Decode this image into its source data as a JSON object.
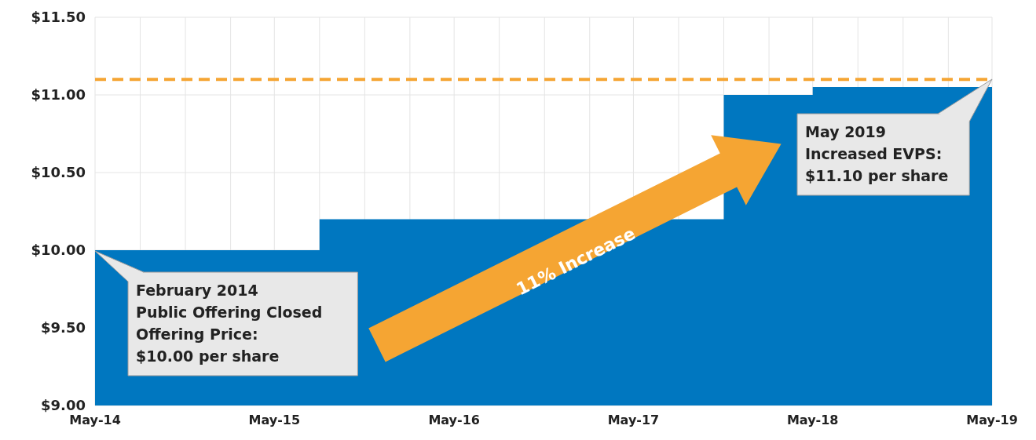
{
  "chart_data": {
    "type": "area",
    "x": [
      "2014-05",
      "2015-08",
      "2015-08",
      "2017-11",
      "2017-11",
      "2018-05",
      "2018-05",
      "2019-05"
    ],
    "series": [
      {
        "color": "#0077c0",
        "values": [
          10,
          10,
          10.2,
          10.2,
          11,
          11,
          11.05,
          11.05
        ]
      }
    ],
    "xlim": [
      "2014-05",
      "2019-05"
    ],
    "xticks": [
      {
        "value": "2014-05",
        "label": "May-14"
      },
      {
        "value": "2014-08",
        "label": null
      },
      {
        "value": "2014-11",
        "label": null
      },
      {
        "value": "2015-02",
        "label": null
      },
      {
        "value": "2015-05",
        "label": "May-15"
      },
      {
        "value": "2015-08",
        "label": null
      },
      {
        "value": "2015-11",
        "label": null
      },
      {
        "value": "2016-02",
        "label": null
      },
      {
        "value": "2016-05",
        "label": "May-16"
      },
      {
        "value": "2016-08",
        "label": null
      },
      {
        "value": "2016-11",
        "label": null
      },
      {
        "value": "2017-02",
        "label": null
      },
      {
        "value": "2017-05",
        "label": "May-17"
      },
      {
        "value": "2017-08",
        "label": null
      },
      {
        "value": "2017-11",
        "label": null
      },
      {
        "value": "2018-02",
        "label": null
      },
      {
        "value": "2018-05",
        "label": "May-18"
      },
      {
        "value": "2018-08",
        "label": null
      },
      {
        "value": "2018-11",
        "label": null
      },
      {
        "value": "2019-02",
        "label": null
      },
      {
        "value": "2019-05",
        "label": "May-19"
      }
    ],
    "ylim": [
      9,
      11.5
    ],
    "yticks": [
      {
        "value": 9,
        "label": "$9.00"
      },
      {
        "value": 9.5,
        "label": "$9.50"
      },
      {
        "value": 10,
        "label": "$10.00"
      },
      {
        "value": 10.5,
        "label": "$10.50"
      },
      {
        "value": 11,
        "label": "$11.00"
      },
      {
        "value": 11.5,
        "label": "$11.50"
      }
    ],
    "grid": true,
    "ref_lines": [
      {
        "axis": "y",
        "value": 11.1,
        "color": "#f5a533",
        "line_style": "dashed"
      }
    ],
    "annotations": [
      "February 2014\nPublic Offering Closed\nOffering Price:\n$10.00 per share",
      "May 2019\nIncreased EVPS:\n$11.10 per share",
      "11% Increase"
    ]
  }
}
